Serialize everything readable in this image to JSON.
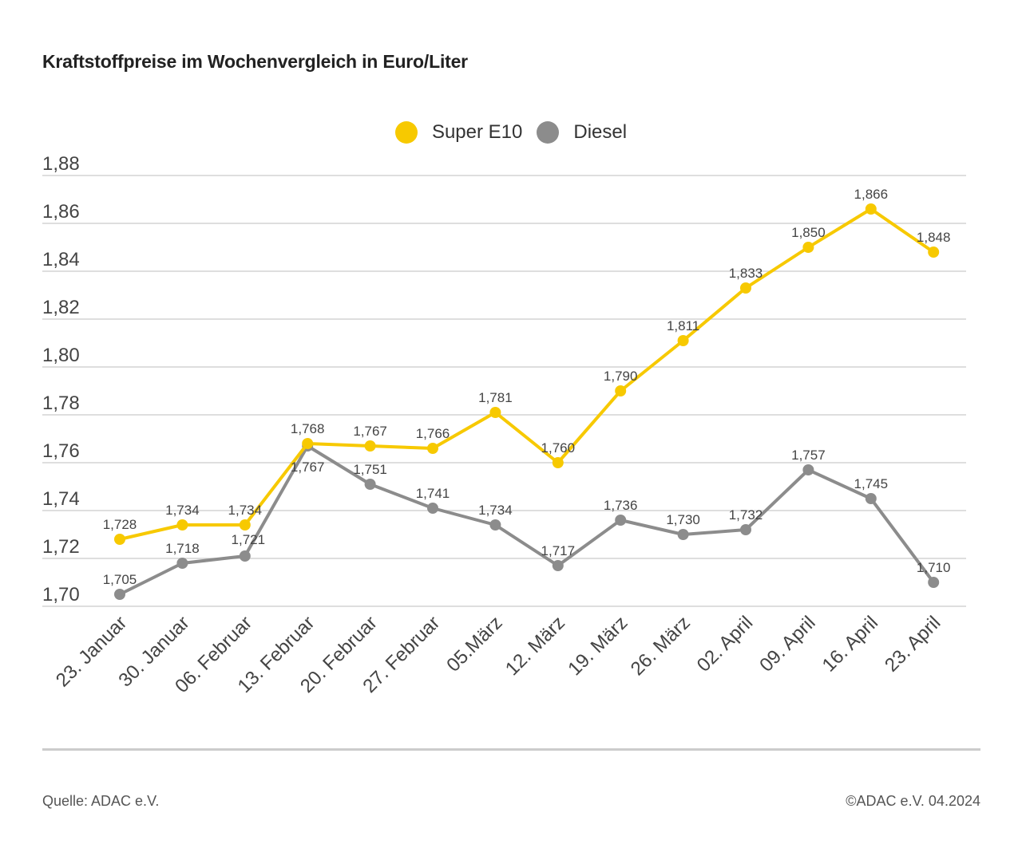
{
  "title": "Kraftstoffpreise im Wochenvergleich in Euro/Liter",
  "colors": {
    "super_e10": "#f7c900",
    "diesel": "#8c8c8c",
    "grid": "#d4d4d4"
  },
  "legend": [
    {
      "label": "Super E10",
      "color": "#f7c900"
    },
    {
      "label": "Diesel",
      "color": "#8c8c8c"
    }
  ],
  "chart_data": {
    "type": "line",
    "categories": [
      "23. Januar",
      "30. Januar",
      "06. Februar",
      "13. Februar",
      "20. Februar",
      "27. Februar",
      "05.März",
      "12. März",
      "19. März",
      "26. März",
      "02. April",
      "09. April",
      "16. April",
      "23. April"
    ],
    "series": [
      {
        "name": "Super E10",
        "color": "#f7c900",
        "values": [
          1.728,
          1.734,
          1.734,
          1.768,
          1.767,
          1.766,
          1.781,
          1.76,
          1.79,
          1.811,
          1.833,
          1.85,
          1.866,
          1.848
        ],
        "labels": [
          "1,728",
          "1,734",
          "1,734",
          "1,768",
          "1,767",
          "1,766",
          "1,781",
          "1,760",
          "1,790",
          "1,811",
          "1,833",
          "1,850",
          "1,866",
          "1,848"
        ]
      },
      {
        "name": "Diesel",
        "color": "#8c8c8c",
        "values": [
          1.705,
          1.718,
          1.721,
          1.767,
          1.751,
          1.741,
          1.734,
          1.717,
          1.736,
          1.73,
          1.732,
          1.757,
          1.745,
          1.71
        ],
        "labels": [
          "1,705",
          "1,718",
          "1,721",
          "1,767",
          "1,751",
          "1,741",
          "1,734",
          "1,717",
          "1,736",
          "1,730",
          "1,732",
          "1,757",
          "1,745",
          "1,710"
        ]
      }
    ],
    "yticks": [
      1.7,
      1.72,
      1.74,
      1.76,
      1.78,
      1.8,
      1.82,
      1.84,
      1.86,
      1.88
    ],
    "ytick_labels": [
      "1,70",
      "1,72",
      "1,74",
      "1,76",
      "1,78",
      "1,80",
      "1,82",
      "1,84",
      "1,86",
      "1,88"
    ],
    "ylim": [
      1.7,
      1.88
    ],
    "grid": true,
    "legend_position": "top-center"
  },
  "footer": {
    "source": "Quelle: ADAC e.V.",
    "copyright": "©ADAC e.V. 04.2024"
  }
}
